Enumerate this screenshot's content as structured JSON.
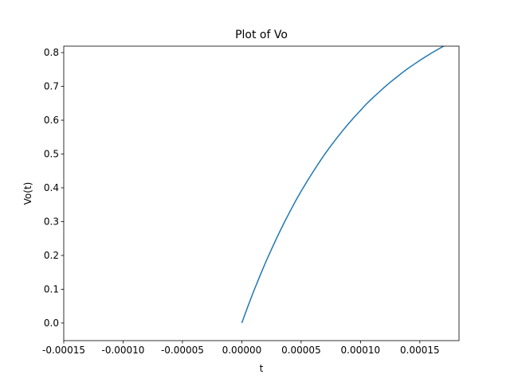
{
  "chart_data": {
    "type": "line",
    "title": "Plot of Vo",
    "x_label": "t",
    "y_label": "Vo(t)",
    "x": [
      0,
      5e-06,
      1e-05,
      1.5e-05,
      2e-05,
      2.5e-05,
      3e-05,
      3.5e-05,
      4e-05,
      4.5e-05,
      5e-05,
      5.5e-05,
      6e-05,
      6.5e-05,
      7e-05,
      7.5e-05,
      8e-05,
      8.5e-05,
      9e-05,
      9.5e-05,
      0.0001,
      0.000105,
      0.00011,
      0.000115,
      0.00012,
      0.000125,
      0.00013,
      0.000135,
      0.00014,
      0.000145,
      0.00015,
      0.000155,
      0.00016,
      0.000165,
      0.00017,
      0.000175
    ],
    "series": [
      {
        "name": "Vo",
        "color": "#1f77b4",
        "values": [
          0,
          0.048,
          0.094,
          0.137,
          0.179,
          0.218,
          0.256,
          0.292,
          0.326,
          0.359,
          0.39,
          0.419,
          0.447,
          0.474,
          0.5,
          0.524,
          0.547,
          0.569,
          0.59,
          0.61,
          0.629,
          0.648,
          0.665,
          0.681,
          0.697,
          0.712,
          0.726,
          0.74,
          0.753,
          0.765,
          0.777,
          0.788,
          0.799,
          0.809,
          0.819,
          0.828
        ]
      }
    ],
    "xlim": [
      -0.00015,
      0.000183
    ],
    "ylim": [
      -0.052,
      0.819
    ],
    "xticks": [
      -0.00015,
      {
        "value": -0.0001,
        "label": "-0.00010"
      },
      -5e-05,
      {
        "value": 0,
        "label": "0.00000"
      },
      5e-05,
      {
        "value": 0.0001,
        "label": "0.00010"
      },
      0.00015
    ],
    "yticks": [
      {
        "value": 0,
        "label": "0.0"
      },
      0.1,
      0.2,
      0.3,
      0.4,
      0.5,
      0.6,
      0.7,
      0.8
    ],
    "grid": false
  }
}
